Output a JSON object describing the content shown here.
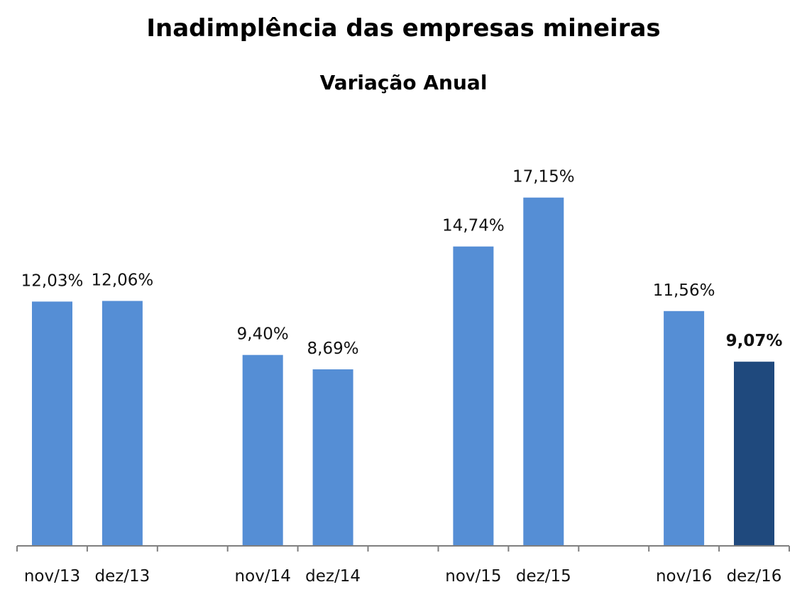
{
  "chart_data": {
    "type": "bar",
    "title": "Inadimplência das empresas mineiras",
    "subtitle": "Variação Anual",
    "xlabel": "",
    "ylabel": "",
    "ylim": [
      0,
      18.5
    ],
    "grid": false,
    "legend": "none",
    "categories": [
      "nov/13",
      "dez/13",
      "nov/14",
      "dez/14",
      "nov/15",
      "dez/15",
      "nov/16",
      "dez/16"
    ],
    "values": [
      12.03,
      12.06,
      9.4,
      8.69,
      14.74,
      17.15,
      11.56,
      9.07
    ],
    "value_labels": [
      "12,03%",
      "12,06%",
      "9,40%",
      "8,69%",
      "14,74%",
      "17,15%",
      "11,56%",
      "9,07%"
    ],
    "highlighted_index": 7,
    "colors": {
      "bar": "#558ed5",
      "highlight": "#1f497d",
      "axis": "#7f7f7f"
    }
  }
}
